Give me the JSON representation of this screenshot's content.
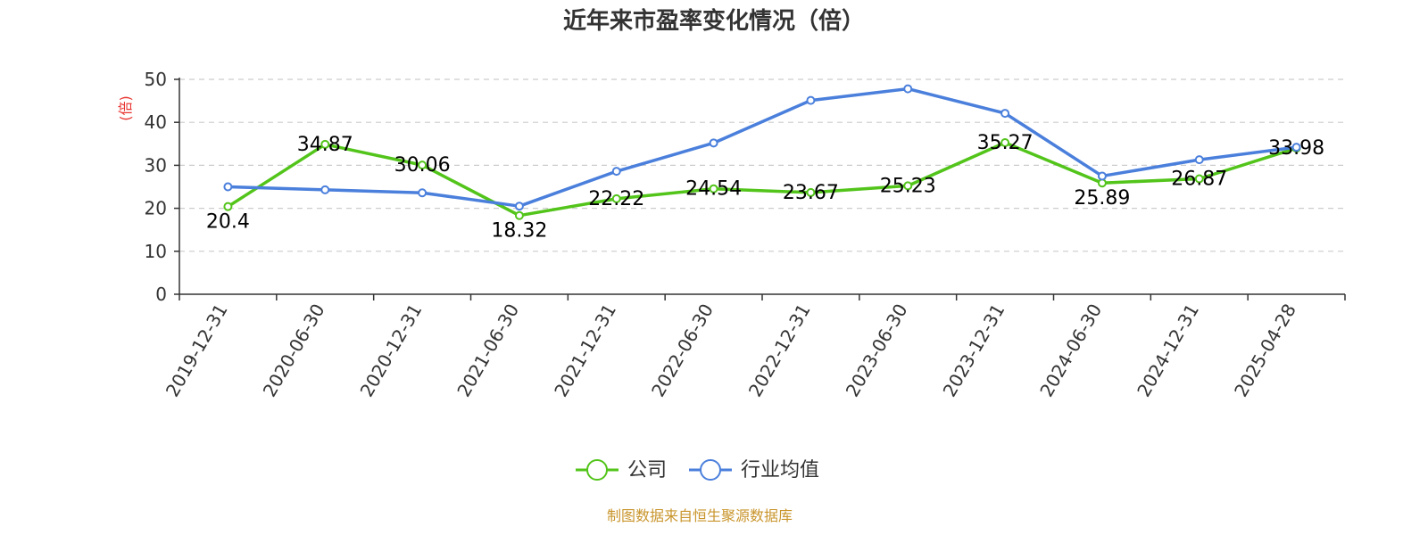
{
  "chart_data": {
    "type": "line",
    "title": "近年来市盈率变化情况（倍）",
    "ylabel": "(倍)",
    "ylim": [
      0,
      50
    ],
    "yticks": [
      0,
      10,
      20,
      30,
      40,
      50
    ],
    "grid": true,
    "legend_position": "bottom-center",
    "categories": [
      "2019-12-31",
      "2020-06-30",
      "2020-12-31",
      "2021-06-30",
      "2021-12-31",
      "2022-06-30",
      "2022-12-31",
      "2023-06-30",
      "2023-12-31",
      "2024-06-30",
      "2024-12-31",
      "2025-04-28"
    ],
    "series": [
      {
        "name": "公司",
        "color": "#52c41a",
        "values": [
          20.4,
          34.87,
          30.06,
          18.32,
          22.22,
          24.54,
          23.67,
          25.23,
          35.27,
          25.89,
          26.87,
          33.98
        ],
        "labels": [
          "20.4",
          "34.87",
          "30.06",
          "18.32",
          "22.22",
          "24.54",
          "23.67",
          "25.23",
          "35.27",
          "25.89",
          "26.87",
          "33.98"
        ]
      },
      {
        "name": "行业均值",
        "color": "#4a7fdc",
        "values": [
          25.0,
          24.3,
          23.6,
          20.5,
          28.6,
          35.2,
          45.1,
          47.8,
          42.1,
          27.5,
          31.3,
          34.2
        ]
      }
    ],
    "source": "制图数据来自恒生聚源数据库",
    "colors": {
      "unit": "#e8332f",
      "source": "#c9952c",
      "axis": "#333333",
      "grid": "#cccccc"
    }
  }
}
